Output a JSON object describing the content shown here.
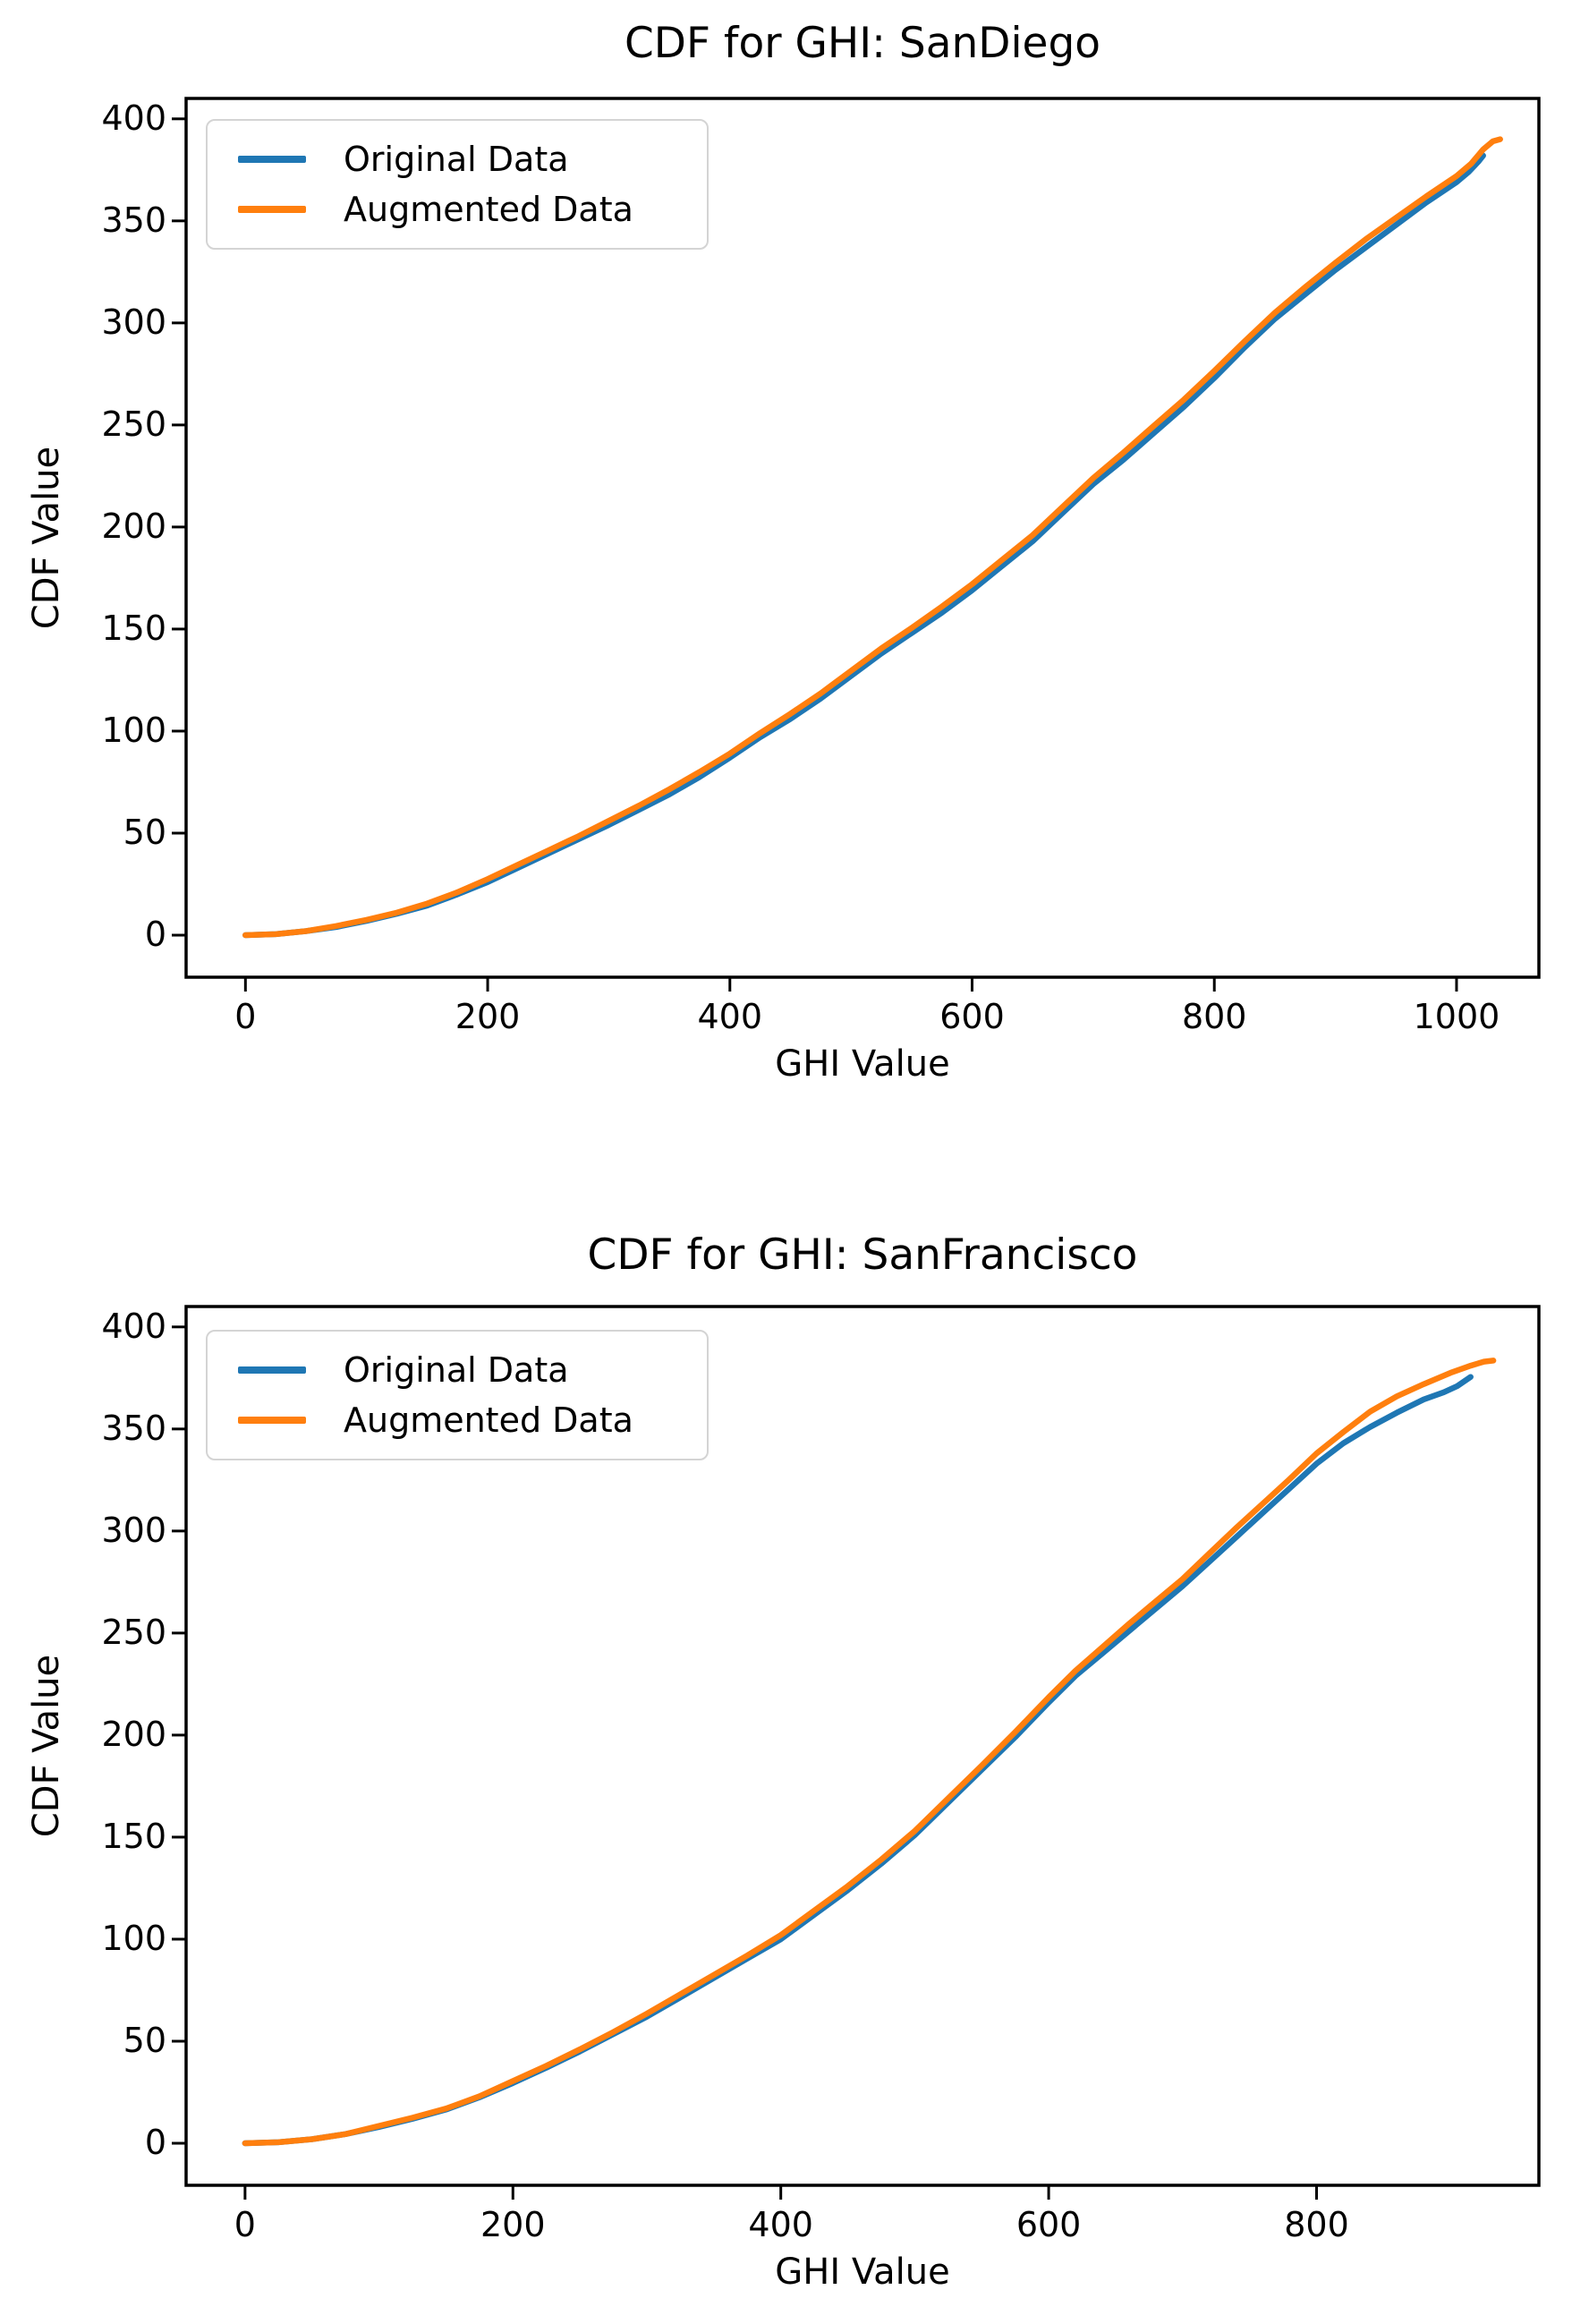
{
  "figure": {
    "background": "#ffffff",
    "text_color": "#000000"
  },
  "series_colors": {
    "original": "#1f77b4",
    "augmented": "#ff7f0e"
  },
  "chart_data": [
    {
      "type": "line",
      "title": "CDF for GHI: SanDiego",
      "xlabel": "GHI Value",
      "ylabel": "CDF Value",
      "x_ticks": [
        0,
        200,
        400,
        600,
        800,
        1000
      ],
      "y_ticks": [
        0,
        50,
        100,
        150,
        200,
        250,
        300,
        350,
        400
      ],
      "xlim": [
        -49,
        1068
      ],
      "ylim": [
        -20.6,
        410
      ],
      "grid": false,
      "legend_position": "upper left",
      "series": [
        {
          "name": "Original Data",
          "color": "#1f77b4",
          "points": [
            [
              0,
              0
            ],
            [
              25,
              0.5
            ],
            [
              50,
              2
            ],
            [
              75,
              4
            ],
            [
              100,
              7
            ],
            [
              125,
              10.5
            ],
            [
              150,
              14.5
            ],
            [
              175,
              20
            ],
            [
              200,
              26
            ],
            [
              225,
              33
            ],
            [
              250,
              40
            ],
            [
              275,
              47
            ],
            [
              300,
              54
            ],
            [
              325,
              61.5
            ],
            [
              350,
              69
            ],
            [
              375,
              77.5
            ],
            [
              400,
              87
            ],
            [
              425,
              97
            ],
            [
              450,
              106
            ],
            [
              475,
              116
            ],
            [
              500,
              127
            ],
            [
              525,
              138
            ],
            [
              550,
              148
            ],
            [
              575,
              158
            ],
            [
              600,
              169
            ],
            [
              625,
              181
            ],
            [
              650,
              193
            ],
            [
              675,
              207
            ],
            [
              700,
              221
            ],
            [
              725,
              233
            ],
            [
              750,
              246
            ],
            [
              775,
              259
            ],
            [
              800,
              273
            ],
            [
              825,
              288
            ],
            [
              850,
              302
            ],
            [
              875,
              314
            ],
            [
              900,
              326
            ],
            [
              925,
              337
            ],
            [
              950,
              348
            ],
            [
              975,
              359
            ],
            [
              1000,
              369
            ],
            [
              1010,
              374
            ],
            [
              1018,
              379
            ],
            [
              1022,
              382
            ]
          ]
        },
        {
          "name": "Augmented Data",
          "color": "#ff7f0e",
          "points": [
            [
              0,
              0
            ],
            [
              25,
              0.5
            ],
            [
              50,
              2
            ],
            [
              75,
              4.5
            ],
            [
              100,
              7.5
            ],
            [
              125,
              11
            ],
            [
              150,
              15.5
            ],
            [
              175,
              21
            ],
            [
              200,
              27.5
            ],
            [
              225,
              34.5
            ],
            [
              250,
              41.5
            ],
            [
              275,
              48.5
            ],
            [
              300,
              56
            ],
            [
              325,
              63.5
            ],
            [
              350,
              71.5
            ],
            [
              375,
              80
            ],
            [
              400,
              89
            ],
            [
              425,
              99
            ],
            [
              450,
              108.5
            ],
            [
              475,
              118.5
            ],
            [
              500,
              129.5
            ],
            [
              525,
              140.5
            ],
            [
              550,
              150.5
            ],
            [
              575,
              161
            ],
            [
              600,
              172
            ],
            [
              625,
              184
            ],
            [
              650,
              196
            ],
            [
              675,
              210
            ],
            [
              700,
              224
            ],
            [
              725,
              236.5
            ],
            [
              750,
              249.5
            ],
            [
              775,
              262.5
            ],
            [
              800,
              276.5
            ],
            [
              825,
              291
            ],
            [
              850,
              305
            ],
            [
              875,
              317.5
            ],
            [
              900,
              329.5
            ],
            [
              925,
              341
            ],
            [
              950,
              351.5
            ],
            [
              975,
              362
            ],
            [
              1000,
              372
            ],
            [
              1012,
              378
            ],
            [
              1022,
              385
            ],
            [
              1030,
              389
            ],
            [
              1036,
              390
            ]
          ]
        }
      ]
    },
    {
      "type": "line",
      "title": "CDF for GHI: SanFrancisco",
      "xlabel": "GHI Value",
      "ylabel": "CDF Value",
      "x_ticks": [
        0,
        200,
        400,
        600,
        800
      ],
      "y_ticks": [
        0,
        50,
        100,
        150,
        200,
        250,
        300,
        350,
        400
      ],
      "xlim": [
        -44,
        966
      ],
      "ylim": [
        -20.6,
        410
      ],
      "grid": false,
      "legend_position": "upper left",
      "series": [
        {
          "name": "Original Data",
          "color": "#1f77b4",
          "points": [
            [
              0,
              0
            ],
            [
              25,
              0.5
            ],
            [
              50,
              2
            ],
            [
              75,
              4.5
            ],
            [
              100,
              8
            ],
            [
              125,
              12
            ],
            [
              150,
              16.5
            ],
            [
              175,
              22.5
            ],
            [
              200,
              29.5
            ],
            [
              225,
              37
            ],
            [
              250,
              45
            ],
            [
              275,
              53.5
            ],
            [
              300,
              62
            ],
            [
              325,
              71.5
            ],
            [
              350,
              81
            ],
            [
              375,
              90.5
            ],
            [
              400,
              100
            ],
            [
              425,
              112
            ],
            [
              450,
              124
            ],
            [
              475,
              137
            ],
            [
              500,
              151
            ],
            [
              525,
              167
            ],
            [
              550,
              183
            ],
            [
              575,
              199
            ],
            [
              600,
              216
            ],
            [
              620,
              229
            ],
            [
              640,
              240
            ],
            [
              660,
              251
            ],
            [
              680,
              262
            ],
            [
              700,
              273
            ],
            [
              720,
              285
            ],
            [
              740,
              297
            ],
            [
              760,
              309
            ],
            [
              780,
              321
            ],
            [
              800,
              333
            ],
            [
              820,
              343
            ],
            [
              840,
              351
            ],
            [
              860,
              358
            ],
            [
              880,
              364.5
            ],
            [
              895,
              368
            ],
            [
              905,
              371
            ],
            [
              915,
              375.5
            ]
          ]
        },
        {
          "name": "Augmented Data",
          "color": "#ff7f0e",
          "points": [
            [
              0,
              0
            ],
            [
              25,
              0.5
            ],
            [
              50,
              2
            ],
            [
              75,
              4.5
            ],
            [
              100,
              8.5
            ],
            [
              125,
              12.5
            ],
            [
              150,
              17
            ],
            [
              175,
              23
            ],
            [
              200,
              30.5
            ],
            [
              225,
              38
            ],
            [
              250,
              46
            ],
            [
              275,
              54.5
            ],
            [
              300,
              63.5
            ],
            [
              325,
              73
            ],
            [
              350,
              82.5
            ],
            [
              375,
              92
            ],
            [
              400,
              102
            ],
            [
              425,
              114
            ],
            [
              450,
              126
            ],
            [
              475,
              139
            ],
            [
              500,
              153
            ],
            [
              525,
              169
            ],
            [
              550,
              185
            ],
            [
              575,
              201.5
            ],
            [
              600,
              218.5
            ],
            [
              620,
              231.5
            ],
            [
              640,
              243
            ],
            [
              660,
              254.5
            ],
            [
              680,
              265.5
            ],
            [
              700,
              276.5
            ],
            [
              720,
              289
            ],
            [
              740,
              301.5
            ],
            [
              760,
              313.5
            ],
            [
              780,
              325.5
            ],
            [
              800,
              338
            ],
            [
              820,
              348.5
            ],
            [
              840,
              358.5
            ],
            [
              860,
              366
            ],
            [
              880,
              372
            ],
            [
              900,
              377.5
            ],
            [
              915,
              381
            ],
            [
              925,
              383
            ],
            [
              932,
              383.5
            ]
          ]
        }
      ]
    }
  ]
}
